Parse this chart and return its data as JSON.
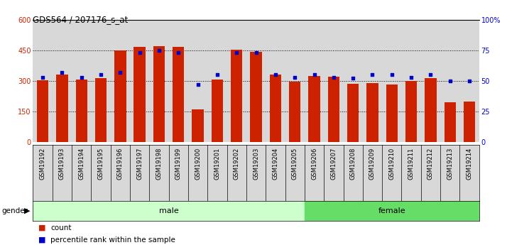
{
  "title": "GDS564 / 207176_s_at",
  "samples": [
    "GSM19192",
    "GSM19193",
    "GSM19194",
    "GSM19195",
    "GSM19196",
    "GSM19197",
    "GSM19198",
    "GSM19199",
    "GSM19200",
    "GSM19201",
    "GSM19202",
    "GSM19203",
    "GSM19204",
    "GSM19205",
    "GSM19206",
    "GSM19207",
    "GSM19208",
    "GSM19209",
    "GSM19210",
    "GSM19211",
    "GSM19212",
    "GSM19213",
    "GSM19214"
  ],
  "counts": [
    302,
    330,
    305,
    315,
    450,
    465,
    470,
    465,
    162,
    305,
    453,
    442,
    330,
    295,
    325,
    320,
    285,
    290,
    283,
    300,
    315,
    195,
    200
  ],
  "percentiles": [
    53,
    57,
    53,
    55,
    57,
    73,
    75,
    73,
    47,
    55,
    73,
    73,
    55,
    53,
    55,
    53,
    52,
    55,
    55,
    53,
    55,
    50,
    50
  ],
  "gender": [
    "male",
    "male",
    "male",
    "male",
    "male",
    "male",
    "male",
    "male",
    "male",
    "male",
    "male",
    "male",
    "male",
    "male",
    "female",
    "female",
    "female",
    "female",
    "female",
    "female",
    "female",
    "female",
    "female"
  ],
  "male_color": "#ccffcc",
  "female_color": "#66dd66",
  "bar_color": "#cc2200",
  "dot_color": "#0000cc",
  "bg_color": "#d8d8d8",
  "ylim_left": [
    0,
    600
  ],
  "ylim_right": [
    0,
    100
  ],
  "yticks_left": [
    0,
    150,
    300,
    450,
    600
  ],
  "yticks_right": [
    0,
    25,
    50,
    75,
    100
  ],
  "yticklabels_right": [
    "0",
    "25",
    "50",
    "75",
    "100%"
  ]
}
